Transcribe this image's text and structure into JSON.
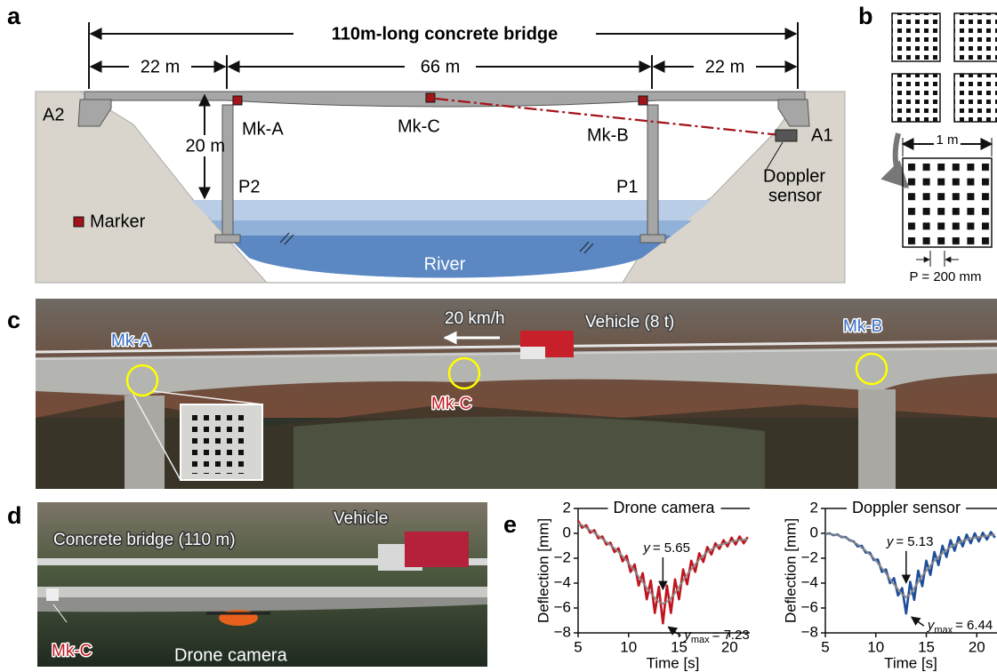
{
  "panels": {
    "a": {
      "label": "a",
      "title": "110m-long concrete bridge",
      "spans": [
        "22 m",
        "66 m",
        "22 m"
      ],
      "abutments": [
        "A2",
        "A1"
      ],
      "markers": [
        "Mk-A",
        "Mk-C",
        "Mk-B"
      ],
      "height": "20 m",
      "piers": [
        "P2",
        "P1"
      ],
      "sensor": [
        "Doppler",
        "sensor"
      ],
      "legend": "Marker",
      "river": "River"
    },
    "b": {
      "label": "b",
      "width": "1 m",
      "pitch": "P = 200 mm"
    },
    "c": {
      "label": "c",
      "markers": [
        "Mk-A",
        "Mk-C",
        "Mk-B"
      ],
      "speed": "20 km/h",
      "vehicle": "Vehicle (8 t)"
    },
    "d": {
      "label": "d",
      "bridge": "Concrete bridge (110 m)",
      "vehicle": "Vehicle",
      "marker": "Mk-C",
      "camera": "Drone camera"
    },
    "e": {
      "label": "e"
    }
  },
  "chart_data": [
    {
      "type": "line",
      "title": "Drone camera",
      "x_label": "Time [s]",
      "y_label": "Deflection [mm]",
      "x": [
        5.0,
        5.4,
        5.8,
        6.2,
        6.6,
        7.0,
        7.4,
        7.8,
        8.2,
        8.6,
        9.0,
        9.4,
        9.8,
        10.2,
        10.6,
        11.0,
        11.4,
        11.8,
        12.2,
        12.6,
        13.0,
        13.4,
        13.8,
        14.2,
        14.6,
        15.0,
        15.4,
        15.8,
        16.2,
        16.6,
        17.0,
        17.4,
        17.8,
        18.2,
        18.6,
        19.0,
        19.4,
        19.8,
        20.2,
        20.6,
        21.0,
        21.4,
        21.8
      ],
      "xlim": [
        5,
        22
      ],
      "xticks": [
        5,
        10,
        15,
        20
      ],
      "ylim": [
        -8,
        2
      ],
      "yticks": [
        2,
        0,
        {
          "value": -2,
          "label": "−2"
        },
        {
          "value": -4,
          "label": "−4"
        },
        {
          "value": -6,
          "label": "−6"
        },
        {
          "value": -8,
          "label": "−8"
        }
      ],
      "series": [
        {
          "color": "#c0141e",
          "values": [
            1.0,
            0.45,
            0.65,
            0.05,
            0.25,
            -0.4,
            -0.25,
            -0.9,
            -0.75,
            -1.5,
            -1.2,
            -2.25,
            -1.8,
            -3.1,
            -2.5,
            -4.2,
            -3.2,
            -5.3,
            -3.8,
            -6.4,
            -4.3,
            -7.23,
            -4.2,
            -6.4,
            -3.7,
            -5.3,
            -2.9,
            -4.1,
            -2.2,
            -3.1,
            -1.6,
            -2.3,
            -1.1,
            -1.7,
            -0.8,
            -1.25,
            -0.55,
            -1.05,
            -0.35,
            -0.9,
            -0.25,
            -0.8,
            -0.3
          ]
        },
        {
          "color": "#8a8a8a",
          "values": [
            0.8,
            0.65,
            0.45,
            0.25,
            0.05,
            -0.2,
            -0.45,
            -0.7,
            -0.95,
            -1.2,
            -1.5,
            -1.85,
            -2.2,
            -2.6,
            -3.0,
            -3.5,
            -3.9,
            -4.4,
            -4.8,
            -5.2,
            -5.5,
            -5.65,
            -5.5,
            -5.2,
            -4.8,
            -4.3,
            -3.8,
            -3.3,
            -2.9,
            -2.5,
            -2.1,
            -1.8,
            -1.5,
            -1.3,
            -1.1,
            -0.95,
            -0.85,
            -0.75,
            -0.65,
            -0.6,
            -0.55,
            -0.5,
            -0.5
          ]
        }
      ],
      "annotations": [
        {
          "var": "y",
          "text": "= 5.65"
        },
        {
          "var": "y",
          "sub": "max",
          "text": "= 7.23"
        }
      ]
    },
    {
      "type": "line",
      "title": "Doppler sensor",
      "x_label": "Time [s]",
      "y_label": "Deflection [mm]",
      "x": [
        5.0,
        5.4,
        5.8,
        6.2,
        6.6,
        7.0,
        7.4,
        7.8,
        8.2,
        8.6,
        9.0,
        9.4,
        9.8,
        10.2,
        10.6,
        11.0,
        11.4,
        11.8,
        12.2,
        12.6,
        13.0,
        13.4,
        13.8,
        14.2,
        14.6,
        15.0,
        15.4,
        15.8,
        16.2,
        16.6,
        17.0,
        17.4,
        17.8,
        18.2,
        18.6,
        19.0,
        19.4,
        19.8,
        20.2,
        20.6,
        21.0,
        21.4,
        21.8
      ],
      "xlim": [
        5,
        22
      ],
      "xticks": [
        5,
        10,
        15,
        20
      ],
      "ylim": [
        -8,
        2
      ],
      "yticks": [
        2,
        0,
        {
          "value": -2,
          "label": "−2"
        },
        {
          "value": -4,
          "label": "−4"
        },
        {
          "value": -6,
          "label": "−6"
        },
        {
          "value": -8,
          "label": "−8"
        }
      ],
      "series": [
        {
          "color": "#1f4e9a",
          "values": [
            -0.05,
            0.0,
            -0.15,
            -0.1,
            -0.3,
            -0.3,
            -0.55,
            -0.65,
            -1.05,
            -1.0,
            -1.55,
            -1.55,
            -2.15,
            -2.1,
            -3.1,
            -2.9,
            -4.0,
            -3.6,
            -5.0,
            -4.4,
            -6.44,
            -3.9,
            -5.35,
            -3.0,
            -4.25,
            -2.2,
            -3.35,
            -1.5,
            -2.55,
            -1.0,
            -1.9,
            -0.55,
            -1.4,
            -0.3,
            -1.05,
            -0.1,
            -0.8,
            0.0,
            -0.65,
            0.05,
            -0.5,
            0.1,
            -0.35
          ]
        },
        {
          "color": "#8a8a8a",
          "values": [
            0,
            -0.05,
            -0.1,
            -0.15,
            -0.25,
            -0.35,
            -0.5,
            -0.7,
            -0.9,
            -1.15,
            -1.4,
            -1.7,
            -2.0,
            -2.4,
            -2.8,
            -3.2,
            -3.7,
            -4.1,
            -4.5,
            -4.9,
            -5.13,
            -4.9,
            -4.4,
            -3.9,
            -3.4,
            -3.0,
            -2.6,
            -2.2,
            -1.9,
            -1.6,
            -1.35,
            -1.1,
            -0.9,
            -0.75,
            -0.6,
            -0.5,
            -0.4,
            -0.35,
            -0.3,
            -0.25,
            -0.2,
            -0.15,
            -0.1
          ]
        }
      ],
      "annotations": [
        {
          "var": "y",
          "text": "= 5.13"
        },
        {
          "var": "y",
          "sub": "max",
          "text": "= 6.44"
        }
      ]
    }
  ]
}
